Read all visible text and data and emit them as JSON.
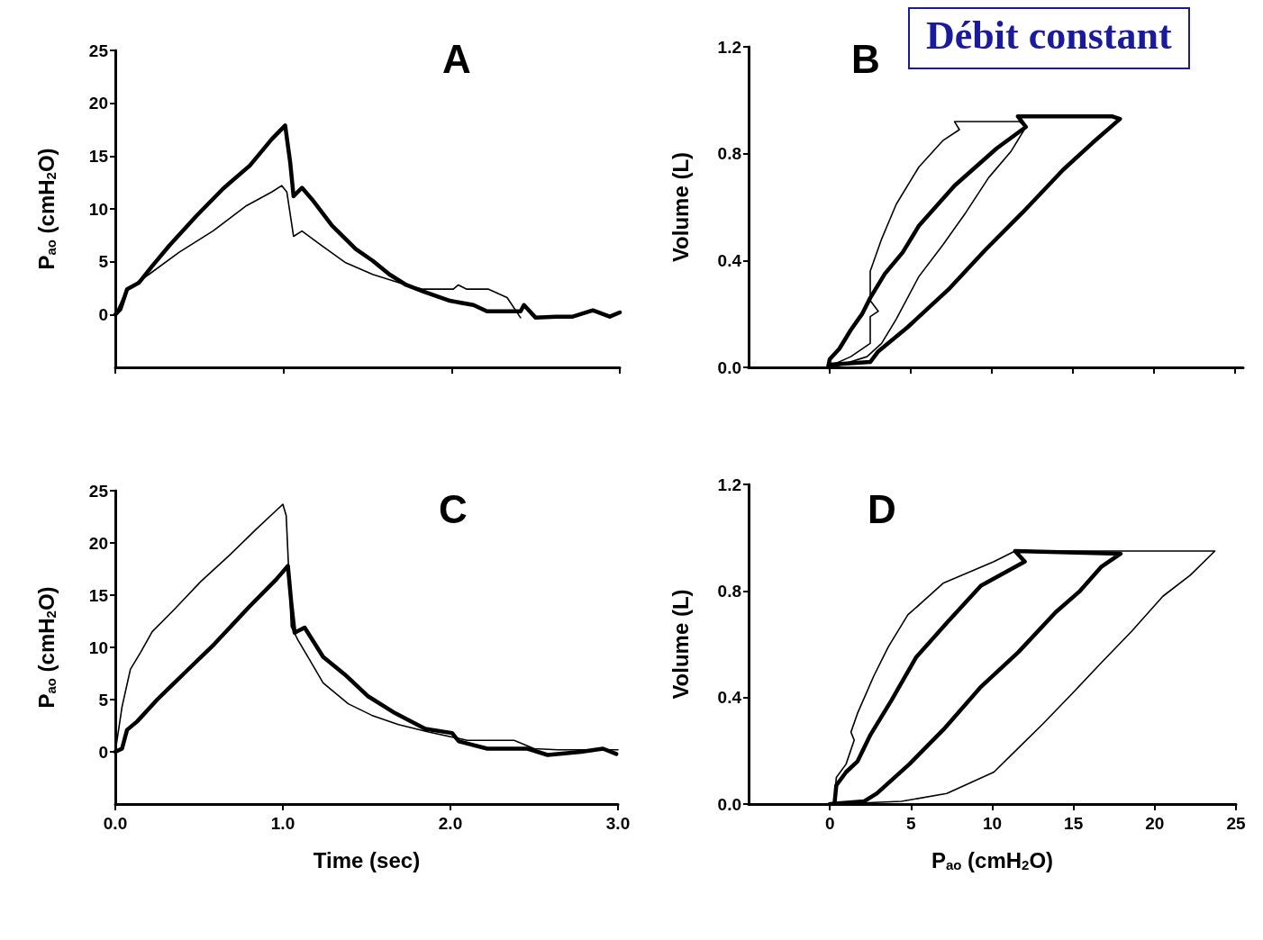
{
  "chart_data": [
    {
      "type": "line",
      "title": "A",
      "ylabel": "P$_{ao}$ (cmH$_{2}$O)",
      "xlim": [
        0,
        3
      ],
      "xticks": [
        0,
        1,
        2,
        3
      ],
      "ylim": [
        -5,
        25
      ],
      "yticks": [
        0,
        5,
        10,
        15,
        20,
        25
      ],
      "tick_labels": "y",
      "marker": "none",
      "grid": false,
      "series": [
        {
          "color": "#000000",
          "x": [
            0,
            0.03,
            0.07,
            0.14,
            0.22,
            0.32,
            0.48,
            0.64,
            0.8,
            0.93,
            1.01,
            1.04,
            1.06,
            1.11,
            1.17,
            1.29,
            1.43,
            1.53,
            1.63,
            1.73,
            1.83,
            1.99,
            2.13,
            2.21,
            2.41,
            2.43,
            2.5,
            2.62,
            2.72,
            2.84,
            2.94,
            3.0
          ],
          "values": [
            0,
            0.5,
            2.4,
            3.0,
            4.6,
            6.5,
            9.3,
            11.9,
            14.1,
            16.6,
            17.9,
            14.4,
            11.2,
            12.0,
            10.9,
            8.4,
            6.2,
            5.1,
            3.8,
            2.8,
            2.2,
            1.3,
            0.9,
            0.3,
            0.3,
            0.9,
            -0.3,
            -0.2,
            -0.2,
            0.4,
            -0.2,
            0.2
          ]
        },
        {
          "color": "#000000",
          "x": [
            0,
            0.07,
            0.2,
            0.38,
            0.58,
            0.78,
            0.93,
            0.99,
            1.02,
            1.06,
            1.11,
            1.23,
            1.37,
            1.53,
            1.73,
            1.83,
            2.01,
            2.04,
            2.09,
            2.22,
            2.33,
            2.41
          ],
          "values": [
            0,
            2.4,
            3.8,
            5.9,
            7.9,
            10.3,
            11.6,
            12.2,
            11.6,
            7.4,
            7.9,
            6.5,
            4.9,
            3.8,
            2.8,
            2.4,
            2.4,
            2.8,
            2.4,
            2.4,
            1.6,
            -0.3
          ]
        }
      ]
    },
    {
      "type": "line",
      "title": "B",
      "ylabel": "Volume (L)",
      "annotations": [
        "Débit constant"
      ],
      "xlim": [
        -5,
        25.5
      ],
      "xticks": [
        0,
        5,
        10,
        15,
        20,
        25
      ],
      "ylim": [
        0,
        1.2
      ],
      "yticks": [
        {
          "value": 0,
          "label": "0.0"
        },
        {
          "value": 0.4,
          "label": "0.4"
        },
        {
          "value": 0.8,
          "label": "0.8"
        },
        {
          "value": 1.2,
          "label": "1.2"
        }
      ],
      "tick_labels": "y",
      "marker": "none",
      "grid": false,
      "series": [
        {
          "color": "#000000",
          "x": [
            0,
            2.5,
            3.0,
            4.8,
            7.3,
            9.6,
            11.9,
            14.4,
            16.2,
            17.9,
            17.4,
            11.6,
            12.1,
            10.3,
            7.7,
            5.5,
            4.5,
            3.4,
            2.5,
            2.0,
            1.3,
            0.6,
            0,
            -0.1
          ],
          "values": [
            0.01,
            0.02,
            0.06,
            0.15,
            0.29,
            0.44,
            0.58,
            0.74,
            0.84,
            0.93,
            0.94,
            0.94,
            0.9,
            0.82,
            0.68,
            0.53,
            0.43,
            0.35,
            0.26,
            0.2,
            0.14,
            0.07,
            0.03,
            0
          ]
        },
        {
          "color": "#000000",
          "x": [
            0.2,
            2.3,
            3.2,
            4.1,
            5.5,
            7.0,
            8.4,
            9.8,
            11.2,
            12.1,
            11.7,
            7.7,
            8.0,
            7.0,
            5.5,
            4.1,
            3.2,
            2.5,
            2.5,
            3.0,
            2.5,
            2.5,
            1.3,
            0.2
          ],
          "values": [
            0,
            0.04,
            0.09,
            0.18,
            0.34,
            0.46,
            0.58,
            0.71,
            0.81,
            0.9,
            0.92,
            0.92,
            0.89,
            0.85,
            0.75,
            0.61,
            0.48,
            0.36,
            0.25,
            0.21,
            0.19,
            0.09,
            0.04,
            0.01
          ]
        }
      ]
    },
    {
      "type": "line",
      "title": "C",
      "xlabel": "Time (sec)",
      "ylabel": "P$_{ao}$ (cmH$_{2}$O)",
      "xlim": [
        0,
        3
      ],
      "xticks": [
        {
          "value": 0,
          "label": "0.0"
        },
        {
          "value": 1,
          "label": "1.0"
        },
        {
          "value": 2,
          "label": "2.0"
        },
        {
          "value": 3,
          "label": "3.0"
        }
      ],
      "ylim": [
        -5,
        25
      ],
      "yticks": [
        0,
        5,
        10,
        15,
        20,
        25
      ],
      "marker": "none",
      "grid": false,
      "series": [
        {
          "color": "#000000",
          "x": [
            0,
            0.04,
            0.07,
            0.13,
            0.25,
            0.41,
            0.59,
            0.8,
            0.96,
            1.03,
            1.05,
            1.07,
            1.13,
            1.24,
            1.37,
            1.51,
            1.67,
            1.85,
            2.01,
            2.05,
            2.22,
            2.46,
            2.58,
            2.78,
            2.91,
            2.99
          ],
          "values": [
            0,
            0.3,
            2.1,
            2.9,
            5.0,
            7.5,
            10.3,
            13.9,
            16.5,
            17.8,
            14.3,
            11.4,
            11.9,
            9.1,
            7.4,
            5.3,
            3.7,
            2.2,
            1.8,
            1.0,
            0.3,
            0.3,
            -0.3,
            0,
            0.3,
            -0.2
          ]
        },
        {
          "color": "#000000",
          "x": [
            0,
            0.04,
            0.09,
            0.15,
            0.22,
            0.35,
            0.51,
            0.68,
            0.84,
            0.96,
            1.0,
            1.02,
            1.05,
            1.09,
            1.16,
            1.24,
            1.39,
            1.53,
            1.69,
            1.87,
            2.1,
            2.38,
            2.5,
            2.64,
            2.89,
            3.0
          ],
          "values": [
            0,
            4.3,
            7.9,
            9.5,
            11.5,
            13.6,
            16.3,
            18.8,
            21.3,
            23.1,
            23.7,
            22.6,
            12.0,
            10.7,
            8.8,
            6.6,
            4.6,
            3.5,
            2.6,
            1.9,
            1.1,
            1.1,
            0.3,
            0.2,
            0.2,
            0.2
          ]
        }
      ]
    },
    {
      "type": "line",
      "title": "D",
      "xlabel": "P$_{ao}$ (cmH$_{2}$O)",
      "ylabel": "Volume (L)",
      "xlim": [
        -5,
        25
      ],
      "xticks": [
        0,
        5,
        10,
        15,
        20,
        25
      ],
      "ylim": [
        0,
        1.2
      ],
      "yticks": [
        {
          "value": 0,
          "label": "0.0"
        },
        {
          "value": 0.4,
          "label": "0.4"
        },
        {
          "value": 0.8,
          "label": "0.8"
        },
        {
          "value": 1.2,
          "label": "1.2"
        }
      ],
      "marker": "none",
      "grid": false,
      "series": [
        {
          "color": "#000000",
          "x": [
            0,
            2.1,
            2.9,
            4.9,
            7.0,
            9.3,
            11.6,
            13.9,
            15.4,
            16.7,
            17.9,
            11.4,
            12.0,
            9.3,
            7.2,
            5.3,
            3.8,
            2.5,
            1.7,
            1.0,
            0.4,
            0.3
          ],
          "values": [
            0,
            0.01,
            0.04,
            0.15,
            0.28,
            0.44,
            0.57,
            0.72,
            0.8,
            0.89,
            0.94,
            0.95,
            0.91,
            0.82,
            0.68,
            0.55,
            0.39,
            0.26,
            0.16,
            0.12,
            0.07,
            0.01
          ]
        },
        {
          "color": "#000000",
          "x": [
            0.4,
            4.4,
            7.2,
            10.1,
            11.6,
            13.1,
            15.0,
            16.7,
            18.6,
            20.5,
            22.2,
            23.7,
            11.4,
            10.1,
            7.0,
            4.8,
            3.6,
            2.7,
            1.7,
            1.3,
            1.5,
            1.0,
            0.4,
            0.3
          ],
          "values": [
            0,
            0.01,
            0.04,
            0.12,
            0.21,
            0.3,
            0.42,
            0.53,
            0.65,
            0.78,
            0.86,
            0.95,
            0.95,
            0.91,
            0.83,
            0.71,
            0.59,
            0.48,
            0.34,
            0.27,
            0.24,
            0.15,
            0.1,
            0.03
          ]
        }
      ]
    }
  ]
}
